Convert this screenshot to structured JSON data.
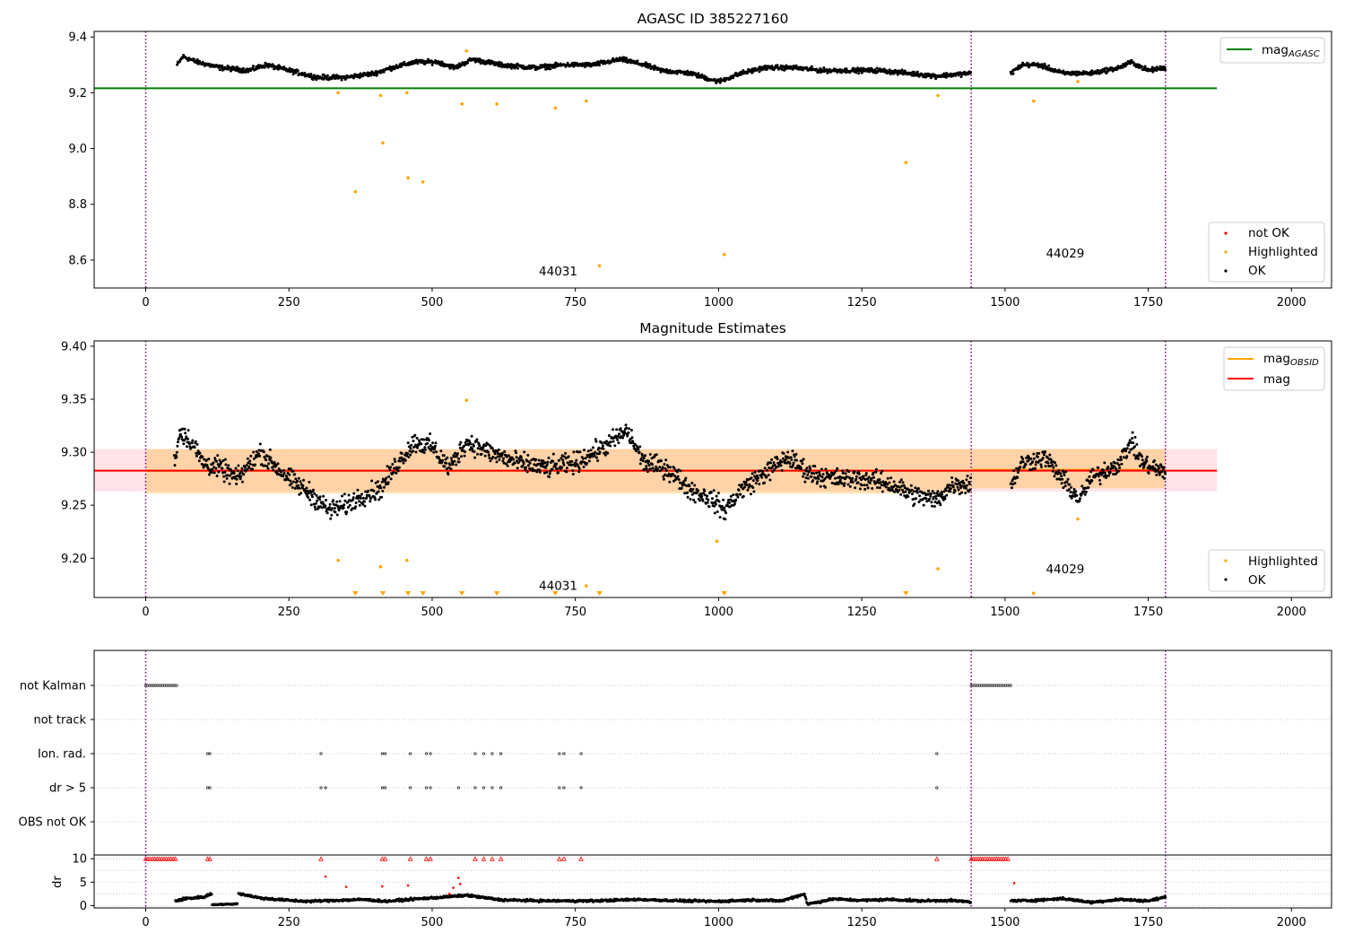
{
  "chart_data": [
    {
      "type": "scatter",
      "title": "AGASC ID 385227160",
      "xlim": [
        -90,
        2070
      ],
      "ylim": [
        8.5,
        9.42
      ],
      "xticks": [
        0,
        250,
        500,
        750,
        1000,
        1250,
        1500,
        1750,
        2000
      ],
      "yticks": [
        8.6,
        8.8,
        9.0,
        9.2,
        9.4
      ],
      "ytick_labels": [
        "8.6",
        "8.8",
        "9.0",
        "9.2",
        "9.4"
      ],
      "obs_boundaries": [
        0,
        1441,
        1780
      ],
      "obsid_labels": [
        {
          "text": "44031",
          "x": 720,
          "y": 8.545
        },
        {
          "text": "44029",
          "x": 1605,
          "y": 8.61
        }
      ],
      "reference_lines": [
        {
          "name": "mag_AGASC",
          "color": "#008000",
          "y": 9.216,
          "x_range": [
            -90,
            1870
          ]
        }
      ],
      "legends": [
        {
          "position": "top-right",
          "entries": [
            {
              "label": "mag",
              "sub": "AGASC",
              "kind": "line",
              "color": "#008000"
            }
          ]
        },
        {
          "position": "bottom-right",
          "entries": [
            {
              "label": "not OK",
              "kind": "dot",
              "color": "#ff0000"
            },
            {
              "label": "Highlighted",
              "kind": "dot",
              "color": "#ffa500"
            },
            {
              "label": "OK",
              "kind": "dot",
              "color": "#000000"
            }
          ]
        }
      ],
      "ok_trend": {
        "color": "#000000",
        "segments": [
          {
            "x": [
              55,
              65,
              90,
              130,
              180,
              210,
              250,
              300,
              350,
              400,
              430,
              470,
              510,
              540,
              570,
              620,
              680,
              730,
              780,
              830,
              870,
              900,
              950,
              1000,
              1040,
              1080,
              1130,
              1180,
              1220,
              1280,
              1330,
              1380,
              1440
            ],
            "y": [
              9.3,
              9.33,
              9.31,
              9.29,
              9.28,
              9.3,
              9.28,
              9.255,
              9.255,
              9.27,
              9.29,
              9.31,
              9.31,
              9.29,
              9.32,
              9.3,
              9.29,
              9.3,
              9.3,
              9.32,
              9.3,
              9.28,
              9.27,
              9.24,
              9.27,
              9.29,
              9.29,
              9.28,
              9.28,
              9.28,
              9.27,
              9.26,
              9.27
            ],
            "spread": 0.012
          },
          {
            "x": [
              1510,
              1530,
              1560,
              1600,
              1650,
              1700,
              1720,
              1750,
              1780
            ],
            "y": [
              9.27,
              9.3,
              9.3,
              9.27,
              9.27,
              9.29,
              9.31,
              9.28,
              9.29
            ],
            "spread": 0.012
          }
        ]
      },
      "highlighted": {
        "color": "#ffa500",
        "x": [
          336,
          366,
          410,
          414,
          456,
          458,
          484,
          552,
          560,
          613,
          715,
          769,
          792,
          1010,
          1327,
          1383,
          1550,
          1627
        ],
        "y": [
          9.2,
          8.845,
          9.19,
          9.02,
          9.2,
          8.895,
          8.88,
          9.16,
          9.35,
          9.16,
          9.145,
          9.17,
          8.58,
          8.62,
          8.95,
          9.19,
          9.17,
          9.24
        ]
      }
    },
    {
      "type": "scatter",
      "title": "Magnitude Estimates",
      "xlim": [
        -90,
        2070
      ],
      "ylim": [
        9.163,
        9.405
      ],
      "xticks": [
        0,
        250,
        500,
        750,
        1000,
        1250,
        1500,
        1750,
        2000
      ],
      "yticks": [
        9.2,
        9.25,
        9.3,
        9.35,
        9.4
      ],
      "ytick_labels": [
        "9.20",
        "9.25",
        "9.30",
        "9.35",
        "9.40"
      ],
      "obs_boundaries": [
        0,
        1441,
        1780
      ],
      "obsid_labels": [
        {
          "text": "44031",
          "x": 720,
          "y": 9.17
        },
        {
          "text": "44029",
          "x": 1605,
          "y": 9.186
        }
      ],
      "bands": [
        {
          "name": "mag band",
          "color": "#ffc0cb",
          "opacity": 0.45,
          "x_range": [
            -90,
            1870
          ],
          "y_range": [
            9.263,
            9.303
          ]
        },
        {
          "name": "obsid 44031 band",
          "color": "#ffa500",
          "opacity": 0.28,
          "x_range": [
            0,
            1441
          ],
          "y_range": [
            9.261,
            9.303
          ]
        },
        {
          "name": "obsid 44029 band",
          "color": "#ffa500",
          "opacity": 0.28,
          "x_range": [
            1441,
            1780
          ],
          "y_range": [
            9.266,
            9.303
          ]
        }
      ],
      "reference_lines": [
        {
          "name": "mag_OBSID",
          "color": "#ffa500",
          "y": 9.2825,
          "x_range": [
            0,
            1441
          ]
        },
        {
          "name": "mag_OBSID",
          "color": "#ffa500",
          "y": 9.2835,
          "x_range": [
            1441,
            1780
          ]
        },
        {
          "name": "mag",
          "color": "#ff0000",
          "y": 9.2826,
          "x_range": [
            -90,
            1870
          ]
        }
      ],
      "legends": [
        {
          "position": "top-right",
          "entries": [
            {
              "label": "mag",
              "sub": "OBSID",
              "kind": "line",
              "color": "#ffa500"
            },
            {
              "label": "mag",
              "kind": "line",
              "color": "#ff0000"
            }
          ]
        },
        {
          "position": "bottom-right",
          "entries": [
            {
              "label": "Highlighted",
              "kind": "dot",
              "color": "#ffa500"
            },
            {
              "label": "OK",
              "kind": "dot",
              "color": "#000000"
            }
          ]
        }
      ],
      "ok_trend": {
        "color": "#000000",
        "segments": [
          {
            "x": [
              50,
              60,
              80,
              100,
              130,
              160,
              200,
              220,
              250,
              290,
              320,
              350,
              380,
              410,
              440,
              470,
              500,
              530,
              560,
              600,
              650,
              700,
              750,
              800,
              840,
              870,
              910,
              950,
              990,
              1010,
              1040,
              1080,
              1120,
              1160,
              1200,
              1250,
              1300,
              1340,
              1380,
              1410,
              1440
            ],
            "y": [
              9.29,
              9.32,
              9.31,
              9.29,
              9.285,
              9.275,
              9.3,
              9.29,
              9.275,
              9.26,
              9.245,
              9.25,
              9.26,
              9.265,
              9.29,
              9.31,
              9.305,
              9.285,
              9.31,
              9.3,
              9.29,
              9.285,
              9.29,
              9.305,
              9.32,
              9.29,
              9.285,
              9.265,
              9.255,
              9.245,
              9.265,
              9.28,
              9.295,
              9.28,
              9.275,
              9.275,
              9.27,
              9.26,
              9.255,
              9.27,
              9.27
            ],
            "spread": 0.014
          },
          {
            "x": [
              1510,
              1530,
              1570,
              1600,
              1630,
              1650,
              1700,
              1720,
              1740,
              1780
            ],
            "y": [
              9.27,
              9.29,
              9.295,
              9.275,
              9.255,
              9.275,
              9.29,
              9.31,
              9.29,
              9.28
            ],
            "spread": 0.013
          }
        ]
      },
      "highlighted": {
        "color": "#ffa500",
        "x": [
          336,
          410,
          456,
          560,
          769,
          997,
          1383,
          1550,
          1627
        ],
        "y": [
          9.198,
          9.192,
          9.198,
          9.349,
          9.174,
          9.216,
          9.19,
          9.167,
          9.237
        ]
      },
      "below_range_markers": {
        "color": "#ffa500",
        "x": [
          366,
          414,
          458,
          484,
          552,
          613,
          715,
          792,
          1010,
          1327
        ]
      }
    },
    {
      "type": "scatter",
      "title": "",
      "xlim": [
        -90,
        2070
      ],
      "xticks": [
        0,
        250,
        500,
        750,
        1000,
        1250,
        1500,
        1750,
        2000
      ],
      "obs_boundaries": [
        0,
        1441,
        1780
      ],
      "flag_rows": [
        {
          "label": "not Kalman",
          "ranges": [
            [
              0,
              55
            ],
            [
              1441,
              1510
            ]
          ],
          "points": []
        },
        {
          "label": "not track",
          "ranges": [],
          "points": []
        },
        {
          "label": "Ion. rad.",
          "ranges": [],
          "points": [
            108,
            112,
            306,
            413,
            418,
            462,
            490,
            497,
            575,
            590,
            605,
            620,
            722,
            730,
            760,
            1381
          ]
        },
        {
          "label": "dr > 5",
          "ranges": [],
          "points": [
            108,
            112,
            306,
            314,
            413,
            418,
            462,
            490,
            497,
            546,
            575,
            590,
            605,
            620,
            722,
            730,
            760,
            1381
          ]
        },
        {
          "label": "OBS not OK",
          "ranges": [],
          "points": []
        }
      ],
      "dr_axis": {
        "ylabel": "dr",
        "ylim": [
          -0.5,
          10.8
        ],
        "yticks": [
          0,
          5,
          10
        ],
        "ytick_labels": [
          "0",
          "5",
          "10"
        ],
        "clipped_points": {
          "color": "#ff0000",
          "y": 10,
          "x": [
            0,
            4,
            8,
            12,
            16,
            20,
            24,
            28,
            32,
            36,
            40,
            44,
            48,
            52,
            108,
            112,
            306,
            413,
            418,
            462,
            490,
            497,
            575,
            590,
            605,
            620,
            722,
            730,
            760,
            1381,
            1441,
            1445,
            1449,
            1453,
            1457,
            1461,
            1465,
            1469,
            1473,
            1477,
            1481,
            1485,
            1489,
            1493,
            1497,
            1501,
            1505
          ]
        },
        "flagged_points": {
          "color": "#ff0000",
          "x": [
            314,
            350,
            413,
            458,
            530,
            537,
            546,
            549,
            1516
          ],
          "y": [
            6.2,
            4.0,
            4.1,
            4.3,
            2.5,
            3.8,
            5.9,
            4.6,
            4.8
          ]
        },
        "ok_segments": [
          {
            "x": [
              52,
              70,
              100,
              115
            ],
            "y": [
              1.0,
              1.5,
              1.8,
              2.5
            ],
            "spread": 0.4
          },
          {
            "x": [
              116,
              150,
              160
            ],
            "y": [
              0.2,
              0.3,
              0.4
            ],
            "spread": 0.15
          },
          {
            "x": [
              162,
              200,
              240,
              280,
              330,
              380,
              420,
              470,
              520,
              560,
              620,
              700,
              780,
              860,
              940,
              1000,
              1060,
              1110,
              1150,
              1155,
              1200,
              1250,
              1300,
              1350,
              1400,
              1440
            ],
            "y": [
              2.6,
              1.6,
              1.2,
              0.9,
              1.1,
              1.3,
              0.9,
              1.4,
              1.8,
              2.2,
              1.2,
              1.0,
              1.0,
              1.3,
              1.0,
              0.9,
              1.2,
              1.0,
              2.5,
              0.3,
              1.4,
              1.1,
              1.3,
              1.0,
              1.1,
              0.8
            ],
            "spread": 0.35
          },
          {
            "x": [
              1510,
              1550,
              1600,
              1650,
              1700,
              1750,
              1780
            ],
            "y": [
              1.0,
              1.1,
              1.5,
              0.7,
              1.3,
              1.0,
              1.8
            ],
            "spread": 0.35
          }
        ]
      }
    }
  ]
}
